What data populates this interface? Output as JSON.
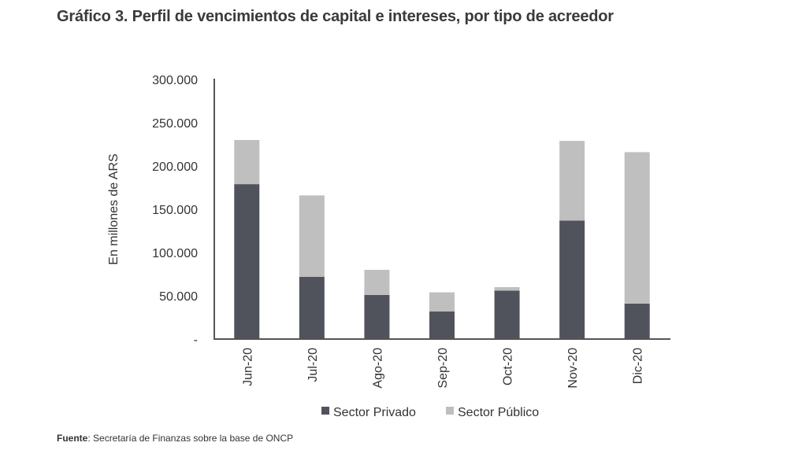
{
  "title": "Gráfico 3. Perfil de vencimientos de capital e intereses, por tipo de acreedor",
  "source": {
    "label": "Fuente",
    "text": ": Secretaría de Finanzas sobre la base de ONCP"
  },
  "chart_data": {
    "type": "bar",
    "stacked": true,
    "title": "Gráfico 3. Perfil de vencimientos de capital e intereses, por tipo de acreedor",
    "xlabel": "",
    "ylabel": "En millones de ARS",
    "ylim": [
      0,
      300000
    ],
    "yticks": [
      0,
      50000,
      100000,
      150000,
      200000,
      250000,
      300000
    ],
    "ytick_labels": [
      "-",
      "50.000",
      "100.000",
      "150.000",
      "200.000",
      "250.000",
      "300.000"
    ],
    "categories": [
      "Jun-20",
      "Jul-20",
      "Ago-20",
      "Sep-20",
      "Oct-20",
      "Nov-20",
      "Dic-20"
    ],
    "series": [
      {
        "name": "Sector Privado",
        "color": "#50535b",
        "values": [
          179000,
          72000,
          51000,
          32000,
          56000,
          137000,
          41000
        ]
      },
      {
        "name": "Sector Público",
        "color": "#bfbfbf",
        "values": [
          51000,
          94000,
          29000,
          22000,
          4000,
          92000,
          175000
        ]
      }
    ],
    "legend": "bottom",
    "grid": false
  }
}
